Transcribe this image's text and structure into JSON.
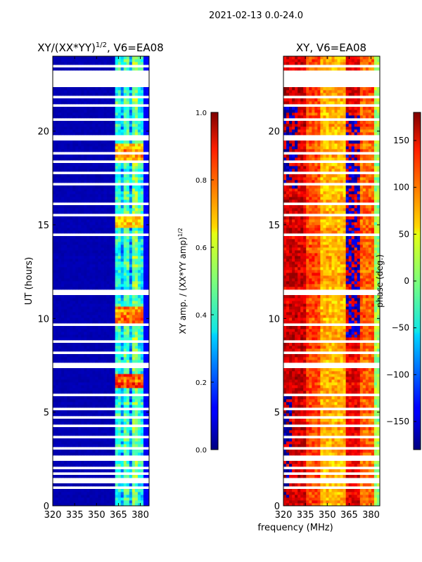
{
  "chart_data": {
    "type": "heatmap",
    "suptitle": "2021-02-13 0.0-24.0",
    "xlabel": "frequency (MHz)",
    "ylabel": "UT (hours)",
    "xlim": [
      320,
      386
    ],
    "ylim": [
      0,
      24
    ],
    "xticks": [
      "320",
      "335",
      "350",
      "365",
      "380"
    ],
    "xtick_values": [
      320,
      335,
      350,
      365,
      380
    ],
    "yticks": [
      "0",
      "5",
      "10",
      "15",
      "20"
    ],
    "ytick_values": [
      0,
      5,
      10,
      15,
      20
    ],
    "flagged_hours": [
      [
        0.25,
        0.35
      ],
      [
        0.95,
        1.05
      ],
      [
        1.2,
        1.45
      ],
      [
        1.6,
        1.8
      ],
      [
        2.0,
        2.1
      ],
      [
        2.4,
        2.65
      ],
      [
        3.0,
        3.1
      ],
      [
        3.55,
        3.8
      ],
      [
        4.2,
        4.3
      ],
      [
        4.7,
        4.8
      ],
      [
        5.1,
        5.2
      ],
      [
        5.8,
        6.05
      ],
      [
        7.35,
        7.7
      ],
      [
        8.1,
        8.2
      ],
      [
        8.75,
        8.9
      ],
      [
        9.25,
        9.35
      ],
      [
        9.6,
        9.75
      ],
      [
        10.6,
        10.7
      ],
      [
        11.3,
        11.5
      ],
      [
        12.1,
        12.2
      ],
      [
        12.7,
        12.8
      ],
      [
        13.3,
        13.4
      ],
      [
        13.9,
        14.0
      ],
      [
        14.4,
        14.5
      ],
      [
        15.5,
        15.65
      ],
      [
        16.1,
        16.2
      ],
      [
        17.1,
        17.3
      ],
      [
        17.75,
        17.85
      ],
      [
        18.35,
        18.45
      ],
      [
        18.8,
        18.95
      ],
      [
        19.55,
        19.8
      ],
      [
        20.6,
        20.7
      ],
      [
        21.3,
        21.4
      ],
      [
        21.75,
        21.9
      ],
      [
        22.3,
        23.2
      ],
      [
        23.4,
        23.5
      ]
    ],
    "panels": [
      {
        "title_main": "XY/(XX*YY)",
        "title_sup": "1/2",
        "title_tail": ", V6=EA08",
        "colorbar_label": "XY amp. / (XX*YY amp)",
        "colorbar_label_sup": "1/2",
        "clim": [
          0,
          1
        ],
        "colorbar_ticks": [
          "0.0",
          "0.2",
          "0.4",
          "0.6",
          "0.8",
          "1.0"
        ],
        "colorbar_tick_values": [
          0,
          0.2,
          0.4,
          0.6,
          0.8,
          1.0
        ],
        "background_value": 0.05,
        "bands": [
          {
            "freq": [
              362,
              366
            ],
            "value": 0.42
          },
          {
            "freq": [
              366,
              368
            ],
            "value": 0.3
          },
          {
            "freq": [
              368,
              372
            ],
            "value": 0.45
          },
          {
            "freq": [
              372,
              374
            ],
            "value": 0.28
          },
          {
            "freq": [
              374,
              378
            ],
            "value": 0.5
          },
          {
            "freq": [
              378,
              379
            ],
            "value": 0.3
          },
          {
            "freq": [
              379,
              383
            ],
            "value": 0.4
          },
          {
            "freq": [
              383,
              386
            ],
            "value": 0.12
          }
        ],
        "bright_hours": [
          [
            6.3,
            7.0,
            0.8
          ],
          [
            9.8,
            10.6,
            0.75
          ],
          [
            18.5,
            19.3,
            0.7
          ],
          [
            14.9,
            15.4,
            0.65
          ]
        ]
      },
      {
        "title_main": "XY, V6=EA08",
        "title_sup": "",
        "title_tail": "",
        "colorbar_label": "phase (deg.)",
        "colorbar_label_sup": "",
        "clim": [
          -180,
          180
        ],
        "colorbar_ticks": [
          "−150",
          "−100",
          "−50",
          "0",
          "50",
          "100",
          "150"
        ],
        "colorbar_tick_values": [
          -150,
          -100,
          -50,
          0,
          50,
          100,
          150
        ],
        "background_value": 130,
        "bands": [
          {
            "freq": [
              320,
              335
            ],
            "value": 150
          },
          {
            "freq": [
              335,
              345
            ],
            "value": 110
          },
          {
            "freq": [
              345,
              362
            ],
            "value": 70
          },
          {
            "freq": [
              362,
              372
            ],
            "value": 140
          },
          {
            "freq": [
              372,
              383
            ],
            "value": 100
          },
          {
            "freq": [
              383,
              386
            ],
            "value": 10
          }
        ],
        "blue_patches": [
          [
            9.0,
            21.0,
            362,
            372,
            -150
          ],
          [
            17.0,
            21.5,
            320,
            330,
            -160
          ],
          [
            0.5,
            6.0,
            320,
            326,
            -170
          ]
        ]
      }
    ]
  }
}
